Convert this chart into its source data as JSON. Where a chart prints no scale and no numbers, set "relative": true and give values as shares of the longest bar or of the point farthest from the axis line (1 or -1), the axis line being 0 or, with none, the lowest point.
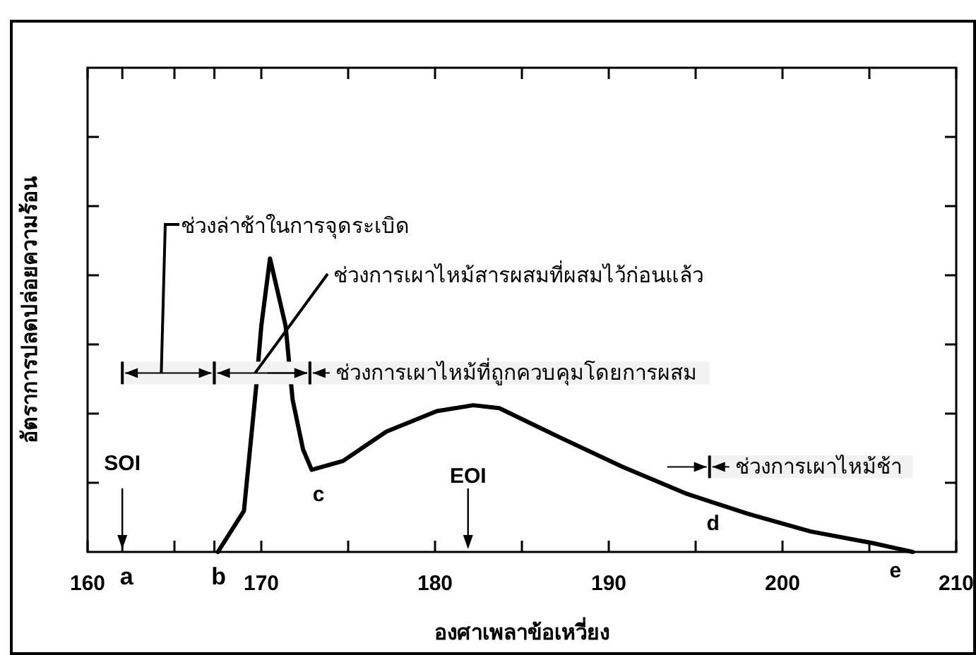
{
  "chart_data": {
    "type": "line",
    "relative": true,
    "xlabel": "องศาเพลาข้อเหวี่ยง",
    "ylabel": "อัตราการปลดปล่อยความร้อน",
    "xlim": [
      160,
      210
    ],
    "xticks": [
      160,
      {
        "value": 162,
        "label": "a"
      },
      {
        "value": 165,
        "label": null
      },
      {
        "value": 167.3,
        "label": "b"
      },
      170,
      {
        "value": 175,
        "label": null
      },
      180,
      {
        "value": 185,
        "label": null
      },
      190,
      {
        "value": 195,
        "label": null
      },
      200,
      {
        "value": 205,
        "label": null
      },
      210
    ],
    "series": [
      {
        "color": "#000000",
        "x": [
          167.5,
          169.0,
          169.7,
          170.0,
          170.5,
          171.4,
          171.8,
          172.4,
          172.9,
          174.7,
          177.2,
          180.1,
          182.2,
          183.7,
          187.2,
          190.8,
          194.4,
          198.0,
          201.6,
          205.2,
          207.5
        ],
        "values": [
          0,
          0.14,
          0.56,
          0.77,
          1,
          0.77,
          0.52,
          0.35,
          0.28,
          0.31,
          0.41,
          0.48,
          0.5,
          0.49,
          0.39,
          0.29,
          0.2,
          0.13,
          0.07,
          0.03,
          0
        ]
      }
    ],
    "bands": [
      {
        "axis": "x",
        "from": 162,
        "to": 167.3,
        "label": "ช่วงล่าช้าในการจุดระเบิด"
      },
      {
        "axis": "x",
        "from": 167.3,
        "to": 172.8,
        "label": "ช่วงการเผาไหม้สารผสมที่ผสมไว้ก่อนแล้ว"
      },
      {
        "axis": "x",
        "from": 172.8,
        "to": 195.8,
        "label": "ช่วงการเผาไหม้ที่ถูกควบคุมโดยการผสม"
      },
      {
        "axis": "x",
        "from": 195.8,
        "to": 207.5,
        "label": "ช่วงการเผาไหม้ช้า"
      }
    ],
    "ref_lines": [
      {
        "axis": "x",
        "value": 162,
        "label": "SOI"
      },
      {
        "axis": "x",
        "value": 181.9,
        "label": "EOI"
      }
    ],
    "annotations": [
      {
        "text": "c",
        "x": 173.3,
        "y": 0.28
      },
      {
        "text": "d",
        "x": 196,
        "y": 0.18
      },
      {
        "text": "e",
        "x": 206.5,
        "y": 0.02
      }
    ],
    "grid": false,
    "marker": "none",
    "line_style": "solid"
  }
}
